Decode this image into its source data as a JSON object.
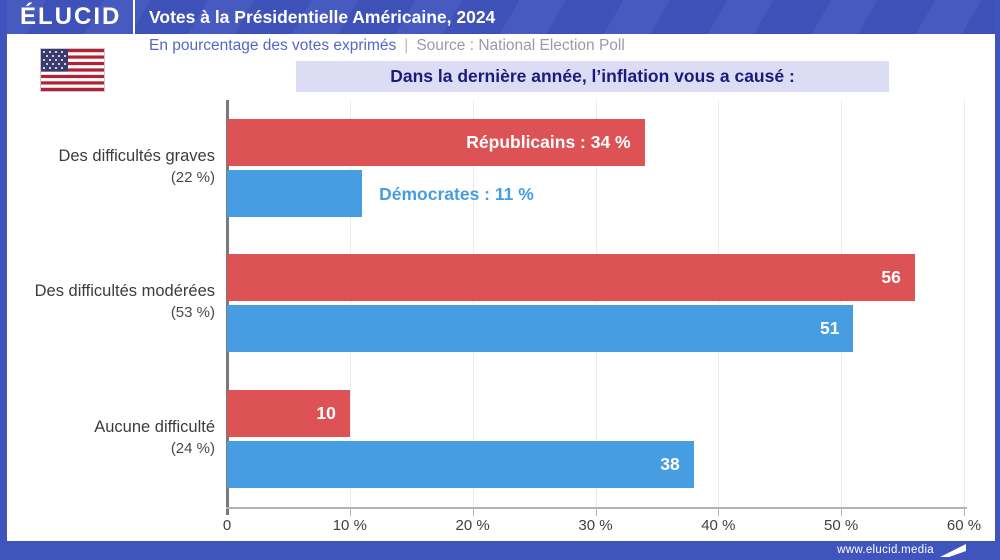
{
  "header": {
    "logo": "ÉLUCID",
    "title": "Votes à la Présidentielle Américaine, 2024"
  },
  "subheader": {
    "note": "En pourcentage des votes exprimés",
    "separator": "|",
    "source": "Source : National Election Poll"
  },
  "question": "Dans la dernière année, l’inflation vous a causé :",
  "footer": {
    "url": "www.elucid.media"
  },
  "colors": {
    "frame_blue": "#4054be",
    "republican_red": "#dd5254",
    "democrat_blue": "#479de2",
    "banner_bg": "#dcdcf4",
    "banner_text": "#1b1b7e"
  },
  "chart_data": {
    "type": "bar",
    "orientation": "horizontal",
    "title": "Dans la dernière année, l’inflation vous a causé :",
    "xlabel": "",
    "ylabel": "",
    "xlim": [
      0,
      60
    ],
    "grid": true,
    "x_ticks": [
      "0",
      "10 %",
      "20 %",
      "30 %",
      "40 %",
      "50 %",
      "60 %"
    ],
    "categories": [
      {
        "label": "Des difficultés graves",
        "total": "(22 %)"
      },
      {
        "label": "Des difficultés modérées",
        "total": "(53 %)"
      },
      {
        "label": "Aucune difficulté",
        "total": "(24 %)"
      }
    ],
    "series": [
      {
        "name": "Républicains",
        "color": "#dd5254",
        "values": [
          34,
          56,
          10
        ],
        "bar_labels": [
          "Républicains : 34 %",
          "56",
          "10"
        ],
        "label_placement": [
          "inside",
          "inside",
          "inside"
        ],
        "label_colors": [
          "#ffffff",
          "#ffffff",
          "#ffffff"
        ]
      },
      {
        "name": "Démocrates",
        "color": "#479de2",
        "values": [
          11,
          51,
          38
        ],
        "bar_labels": [
          "Démocrates : 11 %",
          "51",
          "38"
        ],
        "label_placement": [
          "outside",
          "inside",
          "inside"
        ],
        "label_colors": [
          "#479de2",
          "#ffffff",
          "#ffffff"
        ]
      }
    ]
  }
}
